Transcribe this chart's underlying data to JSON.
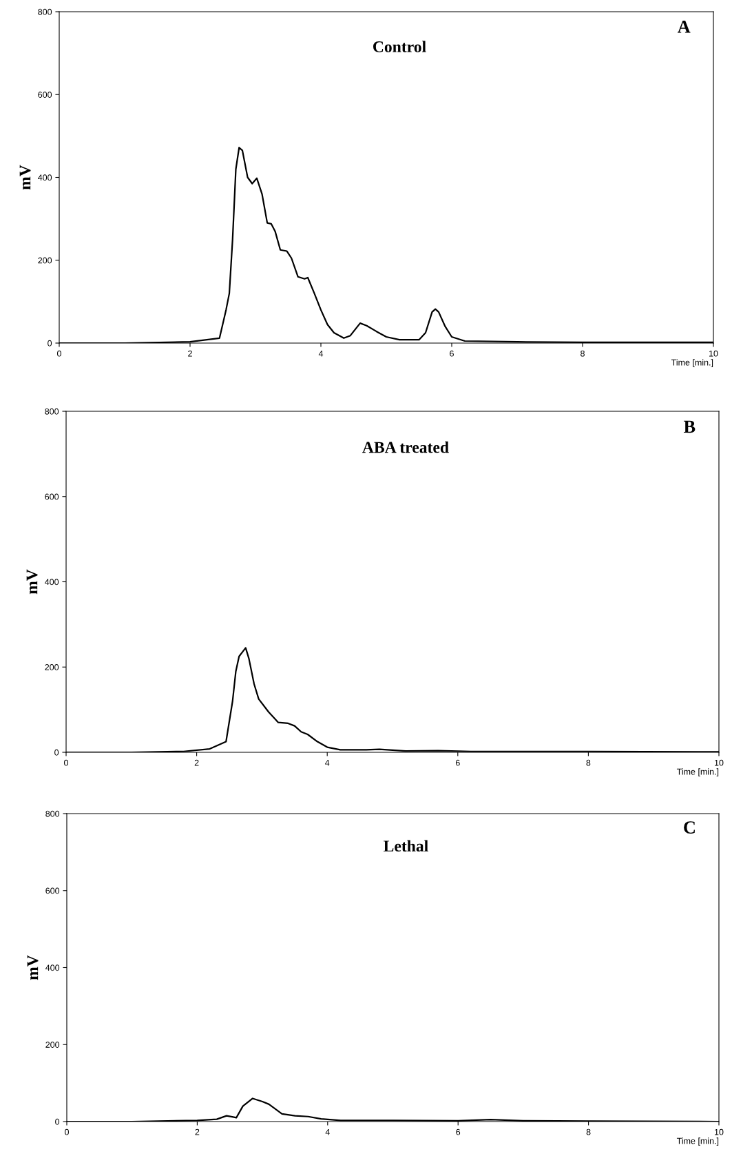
{
  "chart_data": [
    {
      "type": "line",
      "title": "Control",
      "annotations": [
        "A"
      ],
      "ylabel": "mV",
      "xlabel": "Time [min.]",
      "xlim": [
        0,
        10
      ],
      "xticks": [
        0,
        2,
        4,
        6,
        8,
        10
      ],
      "ylim": [
        0,
        800
      ],
      "yticks": [
        0,
        200,
        400,
        600,
        800
      ],
      "grid": false,
      "legend": false,
      "series": [
        {
          "color": "#000000",
          "x": [
            0,
            1,
            2,
            2.45,
            2.55,
            2.6,
            2.65,
            2.7,
            2.75,
            2.8,
            2.88,
            2.95,
            3.02,
            3.1,
            3.18,
            3.24,
            3.3,
            3.38,
            3.48,
            3.55,
            3.65,
            3.75,
            3.8,
            3.9,
            4.0,
            4.1,
            4.2,
            4.35,
            4.45,
            4.6,
            4.7,
            4.85,
            5.0,
            5.2,
            5.5,
            5.6,
            5.7,
            5.75,
            5.8,
            5.9,
            6.0,
            6.2,
            7,
            8,
            10
          ],
          "values": [
            0,
            0,
            3,
            12,
            80,
            120,
            250,
            420,
            472,
            465,
            400,
            385,
            398,
            360,
            290,
            288,
            270,
            225,
            222,
            205,
            160,
            155,
            158,
            120,
            80,
            45,
            25,
            12,
            18,
            48,
            42,
            28,
            15,
            8,
            8,
            25,
            75,
            82,
            75,
            40,
            15,
            5,
            3,
            2,
            2
          ]
        }
      ]
    },
    {
      "type": "line",
      "title": "ABA treated",
      "annotations": [
        "B"
      ],
      "ylabel": "mV",
      "xlabel": "Time [min.]",
      "xlim": [
        0,
        10
      ],
      "xticks": [
        0,
        2,
        4,
        6,
        8,
        10
      ],
      "ylim": [
        0,
        800
      ],
      "yticks": [
        0,
        200,
        400,
        600,
        800
      ],
      "grid": false,
      "legend": false,
      "series": [
        {
          "color": "#000000",
          "x": [
            0,
            1,
            1.8,
            2.2,
            2.45,
            2.55,
            2.6,
            2.65,
            2.7,
            2.75,
            2.8,
            2.88,
            2.95,
            3.1,
            3.25,
            3.4,
            3.5,
            3.6,
            3.7,
            3.85,
            4.0,
            4.2,
            4.6,
            4.8,
            5.2,
            5.7,
            6.2,
            8,
            10
          ],
          "values": [
            0,
            0,
            2,
            8,
            25,
            120,
            190,
            225,
            235,
            245,
            220,
            160,
            125,
            95,
            70,
            68,
            62,
            48,
            42,
            25,
            12,
            6,
            6,
            7,
            3,
            4,
            2,
            2,
            1
          ]
        }
      ]
    },
    {
      "type": "line",
      "title": "Lethal",
      "annotations": [
        "C"
      ],
      "ylabel": "mV",
      "xlabel": "Time [min.]",
      "xlim": [
        0,
        10
      ],
      "xticks": [
        0,
        2,
        4,
        6,
        8,
        10
      ],
      "ylim": [
        0,
        800
      ],
      "yticks": [
        0,
        200,
        400,
        600,
        800
      ],
      "grid": false,
      "legend": false,
      "series": [
        {
          "color": "#000000",
          "x": [
            0,
            1,
            2,
            2.3,
            2.45,
            2.55,
            2.6,
            2.7,
            2.85,
            3.0,
            3.1,
            3.3,
            3.5,
            3.7,
            3.9,
            4.2,
            5,
            6,
            6.5,
            7,
            8,
            10
          ],
          "values": [
            0,
            0,
            3,
            6,
            15,
            12,
            10,
            40,
            60,
            52,
            45,
            20,
            15,
            13,
            7,
            3,
            3,
            2,
            5,
            2,
            1,
            0
          ]
        }
      ]
    }
  ]
}
